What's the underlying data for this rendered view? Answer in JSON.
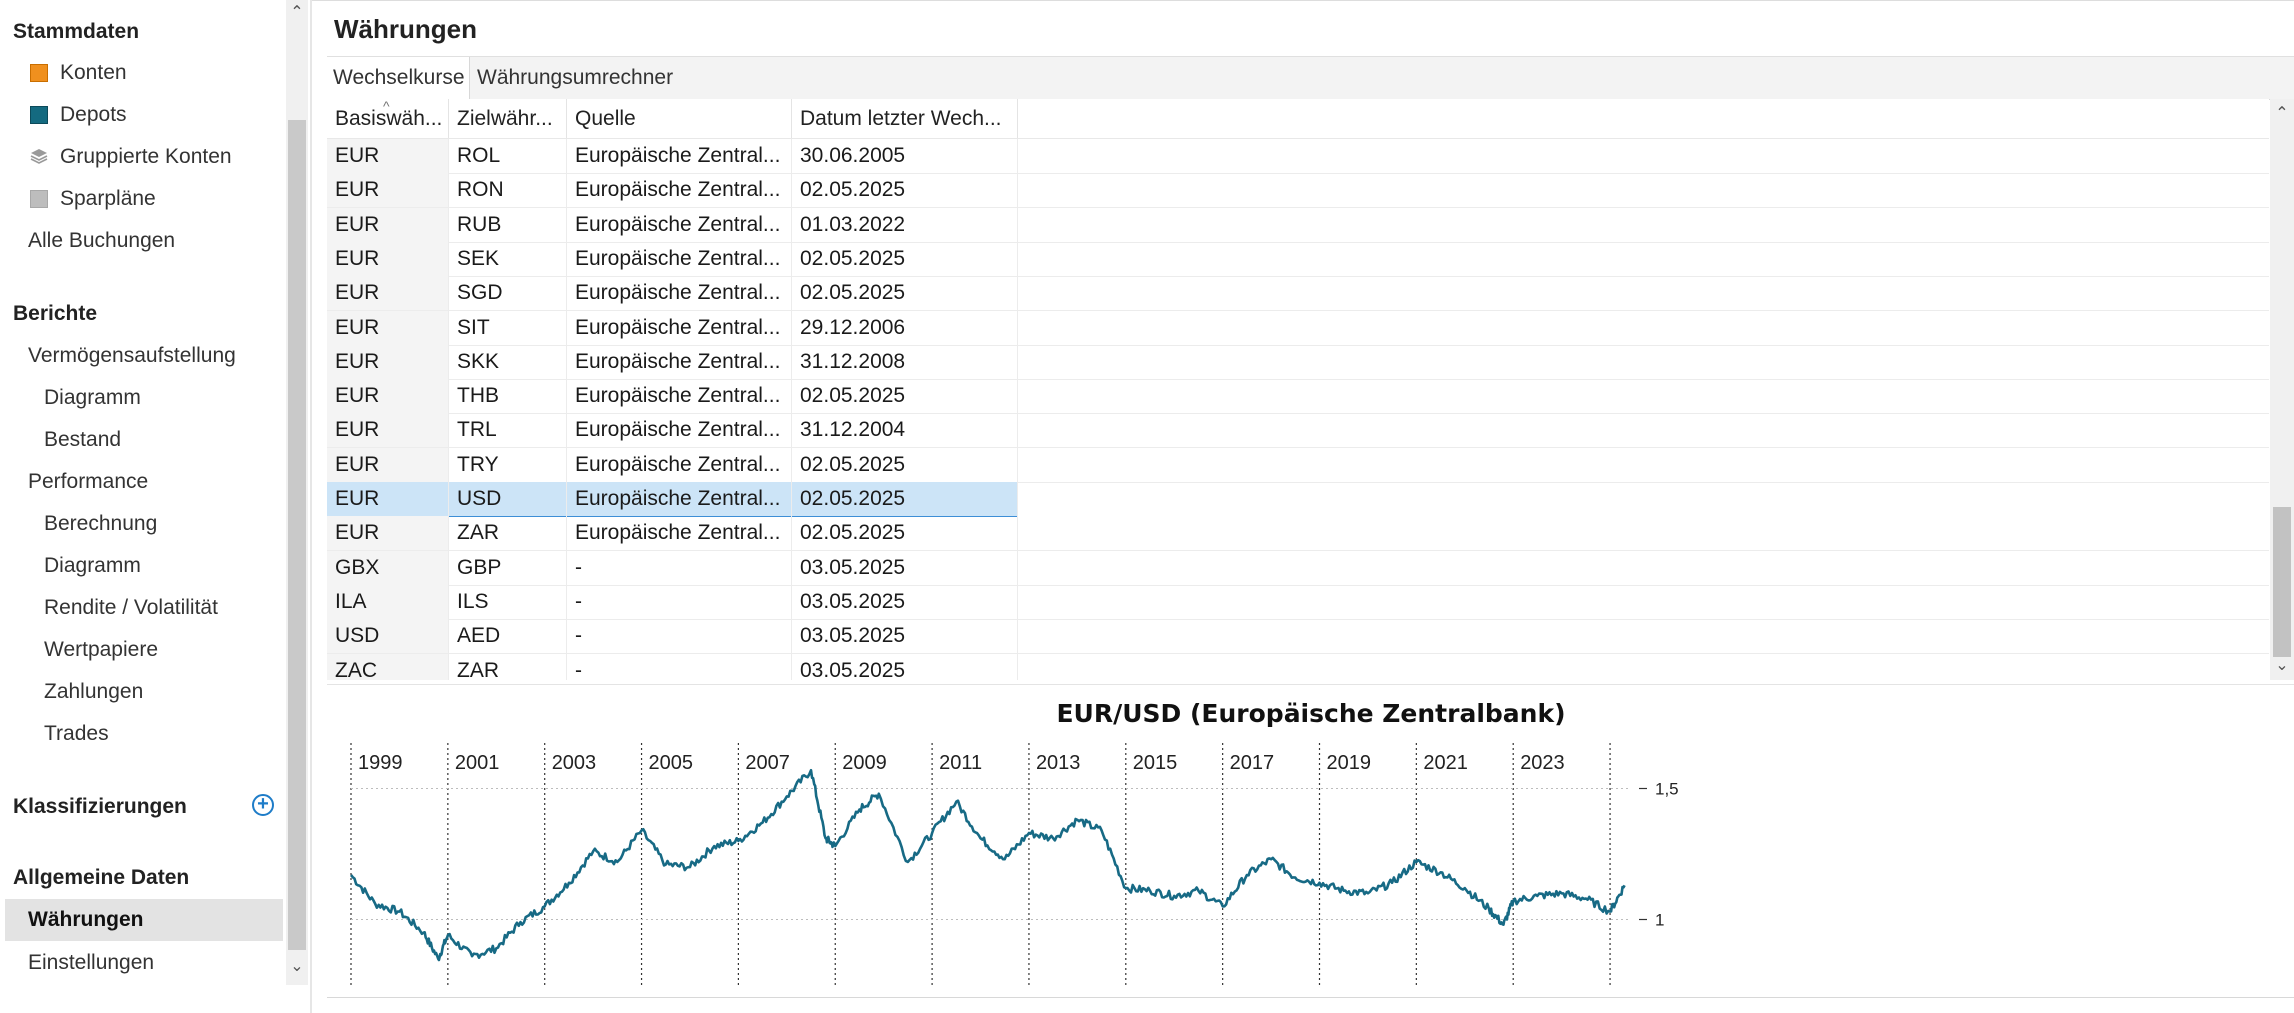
{
  "sidebar": {
    "sections": [
      {
        "title": "Stammdaten"
      },
      {
        "title": "Berichte"
      },
      {
        "title": "Klassifizierungen"
      },
      {
        "title": "Allgemeine Daten"
      }
    ],
    "stammdaten_items": [
      {
        "label": "Konten",
        "icon": "orange-square-icon",
        "color": "#f0901e"
      },
      {
        "label": "Depots",
        "icon": "teal-square-icon",
        "color": "#146a80"
      },
      {
        "label": "Gruppierte Konten",
        "icon": "layers-icon",
        "color": "#8a8a8a"
      },
      {
        "label": "Sparpläne",
        "icon": "gray-square-icon",
        "color": "#b8b8b8"
      }
    ],
    "alle_buchungen": "Alle Buchungen",
    "berichte_items": [
      {
        "label": "Vermögensaufstellung",
        "level": 1
      },
      {
        "label": "Diagramm",
        "level": 2
      },
      {
        "label": "Bestand",
        "level": 2
      },
      {
        "label": "Performance",
        "level": 1
      },
      {
        "label": "Berechnung",
        "level": 2
      },
      {
        "label": "Diagramm",
        "level": 2
      },
      {
        "label": "Rendite / Volatilität",
        "level": 2
      },
      {
        "label": "Wertpapiere",
        "level": 2
      },
      {
        "label": "Zahlungen",
        "level": 2
      },
      {
        "label": "Trades",
        "level": 2
      }
    ],
    "allgemein_items": [
      {
        "label": "Währungen",
        "active": true
      },
      {
        "label": "Einstellungen",
        "active": false
      }
    ]
  },
  "main": {
    "title": "Währungen",
    "tabs": [
      "Wechselkurse",
      "Währungsumrechner"
    ],
    "columns": [
      "Basiswäh...",
      "Zielwähr...",
      "Quelle",
      "Datum letzter Wech..."
    ],
    "rows": [
      [
        "EUR",
        "ROL",
        "Europäische Zentral...",
        "30.06.2005"
      ],
      [
        "EUR",
        "RON",
        "Europäische Zentral...",
        "02.05.2025"
      ],
      [
        "EUR",
        "RUB",
        "Europäische Zentral...",
        "01.03.2022"
      ],
      [
        "EUR",
        "SEK",
        "Europäische Zentral...",
        "02.05.2025"
      ],
      [
        "EUR",
        "SGD",
        "Europäische Zentral...",
        "02.05.2025"
      ],
      [
        "EUR",
        "SIT",
        "Europäische Zentral...",
        "29.12.2006"
      ],
      [
        "EUR",
        "SKK",
        "Europäische Zentral...",
        "31.12.2008"
      ],
      [
        "EUR",
        "THB",
        "Europäische Zentral...",
        "02.05.2025"
      ],
      [
        "EUR",
        "TRL",
        "Europäische Zentral...",
        "31.12.2004"
      ],
      [
        "EUR",
        "TRY",
        "Europäische Zentral...",
        "02.05.2025"
      ],
      [
        "EUR",
        "USD",
        "Europäische Zentral...",
        "02.05.2025"
      ],
      [
        "EUR",
        "ZAR",
        "Europäische Zentral...",
        "02.05.2025"
      ],
      [
        "GBX",
        "GBP",
        "-",
        "03.05.2025"
      ],
      [
        "ILA",
        "ILS",
        "-",
        "03.05.2025"
      ],
      [
        "USD",
        "AED",
        "-",
        "03.05.2025"
      ],
      [
        "ZAC",
        "ZAR",
        "-",
        "03.05.2025"
      ]
    ],
    "selected_row": 10
  },
  "chart_data": {
    "type": "line",
    "title": "EUR/USD (Europäische Zentralbank)",
    "x_tick_labels": [
      "1999",
      "2001",
      "2003",
      "2005",
      "2007",
      "2009",
      "2011",
      "2013",
      "2015",
      "2017",
      "2019",
      "2021",
      "2023"
    ],
    "y_tick_labels": [
      "1,5",
      "1"
    ],
    "y_ticks": [
      1.5,
      1.0
    ],
    "xlim": [
      1999.0,
      2025.35
    ],
    "ylim": [
      0.75,
      1.75
    ],
    "line_color": "#176a85",
    "grid": true,
    "series": [
      {
        "x": [
          1999.0,
          1999.5,
          2000.0,
          2000.5,
          2000.8,
          2001.0,
          2001.5,
          2002.0,
          2002.5,
          2003.0,
          2003.5,
          2004.0,
          2004.5,
          2005.0,
          2005.5,
          2006.0,
          2006.5,
          2007.0,
          2007.5,
          2008.0,
          2008.5,
          2008.8,
          2009.0,
          2009.5,
          2009.9,
          2010.5,
          2011.0,
          2011.5,
          2012.0,
          2012.5,
          2013.0,
          2013.5,
          2014.0,
          2014.5,
          2015.0,
          2015.5,
          2016.0,
          2016.5,
          2017.0,
          2017.5,
          2018.0,
          2018.5,
          2019.0,
          2019.5,
          2020.0,
          2020.5,
          2021.0,
          2021.5,
          2022.0,
          2022.5,
          2022.8,
          2023.0,
          2023.5,
          2024.0,
          2024.5,
          2025.0,
          2025.3
        ],
        "y": [
          1.17,
          1.06,
          1.03,
          0.95,
          0.85,
          0.94,
          0.86,
          0.89,
          0.99,
          1.05,
          1.14,
          1.26,
          1.22,
          1.34,
          1.21,
          1.2,
          1.28,
          1.3,
          1.37,
          1.47,
          1.57,
          1.31,
          1.28,
          1.42,
          1.48,
          1.22,
          1.33,
          1.45,
          1.31,
          1.23,
          1.33,
          1.31,
          1.38,
          1.34,
          1.12,
          1.11,
          1.09,
          1.11,
          1.05,
          1.17,
          1.23,
          1.16,
          1.14,
          1.11,
          1.1,
          1.14,
          1.22,
          1.18,
          1.12,
          1.04,
          0.98,
          1.07,
          1.09,
          1.1,
          1.08,
          1.03,
          1.13
        ]
      }
    ]
  }
}
